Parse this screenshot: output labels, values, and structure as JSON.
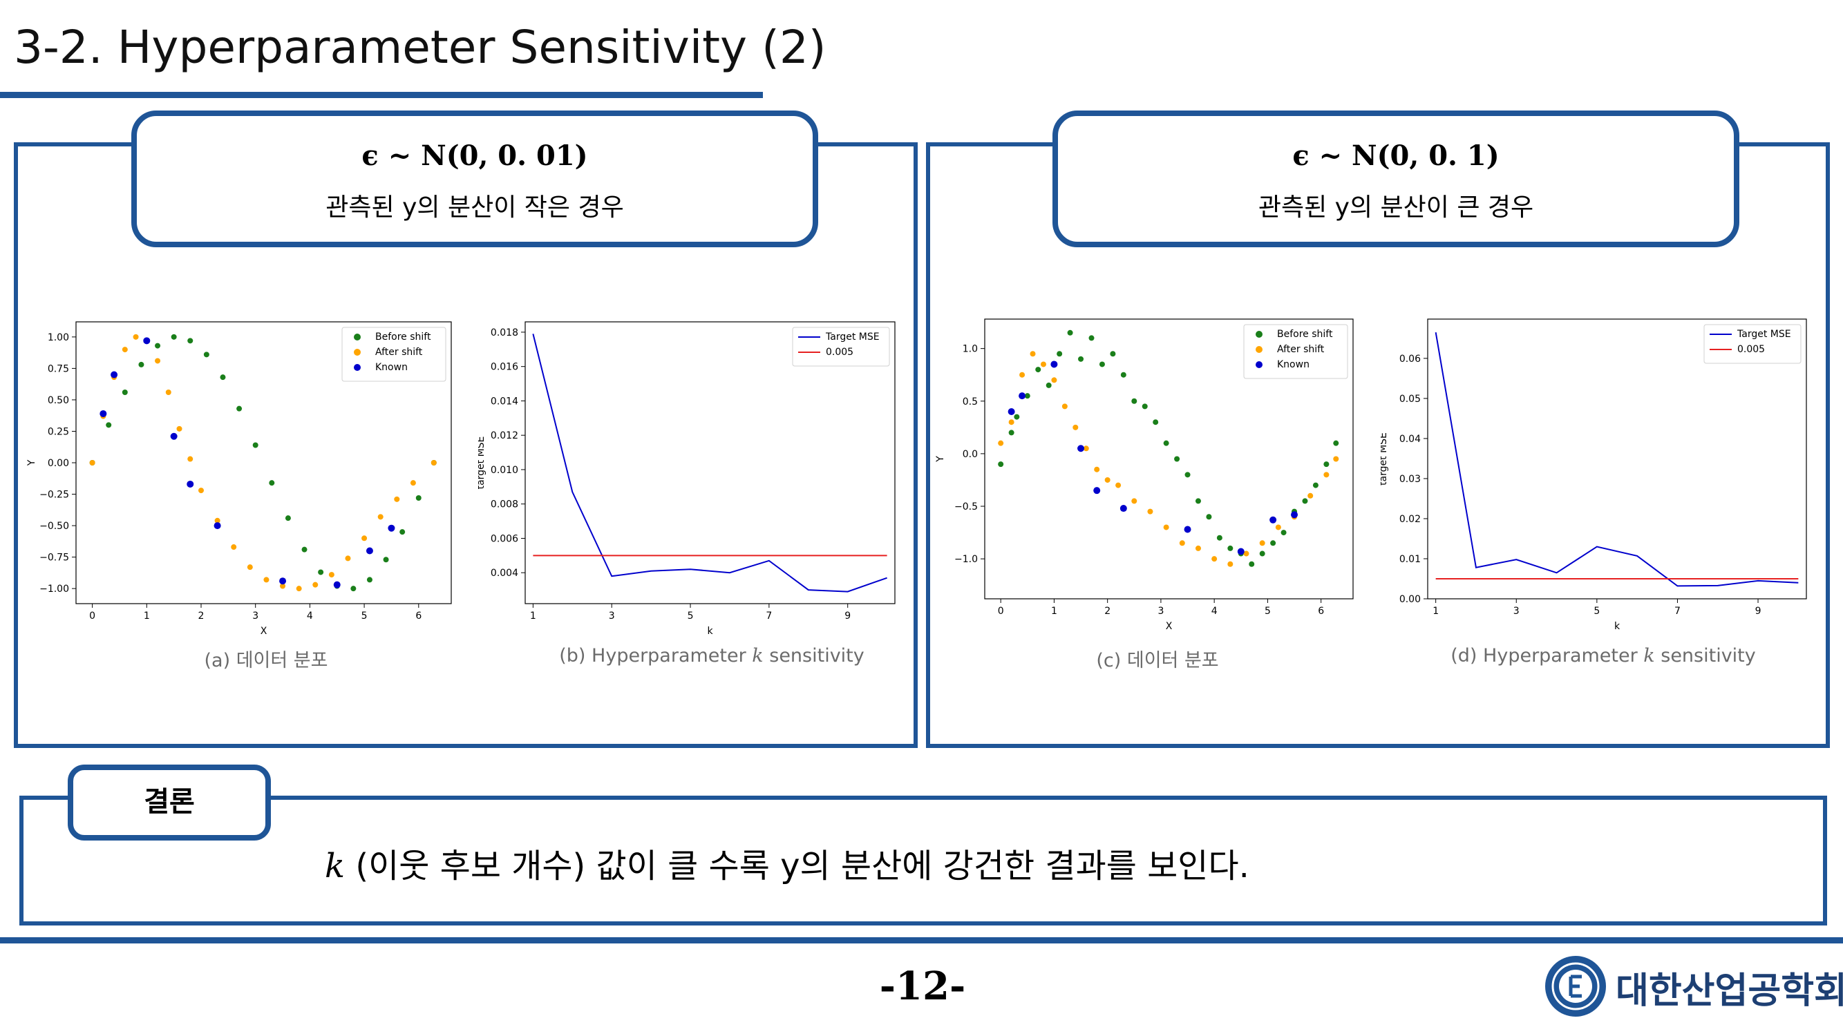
{
  "slide": {
    "title": "3-2. Hyperparameter Sensitivity (2)",
    "page_number": "-12-",
    "organization": "대한산업공학회"
  },
  "left_condition": {
    "formula": "ϵ ~ N(0, 0. 01)",
    "description": "관측된 y의 분산이 작은 경우"
  },
  "right_condition": {
    "formula": "ϵ ~ N(0, 0. 1)",
    "description": "관측된 y의 분산이 큰 경우"
  },
  "captions": {
    "a": "(a) 데이터 분포",
    "b_prefix": "(b) Hyperparameter ",
    "b_k": "k",
    "b_suffix": " sensitivity",
    "c": "(c) 데이터 분포",
    "d_prefix": "(d) Hyperparameter ",
    "d_k": "k",
    "d_suffix": " sensitivity"
  },
  "conclusion": {
    "label": "결론",
    "k": "k",
    "text": " (이웃 후보 개수) 값이 클 수록 y의 분산에 강건한 결과를 보인다."
  },
  "colors": {
    "brand": "#1f5597",
    "before": "#1a7f1a",
    "after": "#ffa500",
    "known": "#0000cc",
    "mse": "#0000cc",
    "threshold": "#e62020"
  },
  "chart_data": [
    {
      "id": "a",
      "type": "scatter",
      "xlabel": "X",
      "ylabel": "Y",
      "xlim": [
        -0.3,
        6.6
      ],
      "ylim": [
        -1.12,
        1.12
      ],
      "xticks": [
        0,
        1,
        2,
        3,
        4,
        5,
        6
      ],
      "yticks": [
        1.0,
        0.75,
        0.5,
        0.25,
        0.0,
        -0.25,
        -0.5,
        -0.75,
        -1.0
      ],
      "ytick_labels": [
        "1.00",
        "0.75",
        "0.50",
        "0.25",
        "0.00",
        "−0.25",
        "−0.50",
        "−0.75",
        "−1.00"
      ],
      "legend_position": "top-right",
      "series": [
        {
          "name": "Before shift",
          "color": "#1a7f1a",
          "points": [
            [
              0.0,
              0.0
            ],
            [
              0.3,
              0.3
            ],
            [
              0.6,
              0.56
            ],
            [
              0.9,
              0.78
            ],
            [
              1.2,
              0.93
            ],
            [
              1.5,
              1.0
            ],
            [
              1.8,
              0.97
            ],
            [
              2.1,
              0.86
            ],
            [
              2.4,
              0.68
            ],
            [
              2.7,
              0.43
            ],
            [
              3.0,
              0.14
            ],
            [
              3.3,
              -0.16
            ],
            [
              3.6,
              -0.44
            ],
            [
              3.9,
              -0.69
            ],
            [
              4.2,
              -0.87
            ],
            [
              4.5,
              -0.98
            ],
            [
              4.8,
              -1.0
            ],
            [
              5.1,
              -0.93
            ],
            [
              5.4,
              -0.77
            ],
            [
              5.7,
              -0.55
            ],
            [
              6.0,
              -0.28
            ],
            [
              6.28,
              0.0
            ]
          ]
        },
        {
          "name": "After shift",
          "color": "#ffa500",
          "points": [
            [
              0.0,
              0.0
            ],
            [
              0.2,
              0.37
            ],
            [
              0.4,
              0.68
            ],
            [
              0.6,
              0.9
            ],
            [
              0.8,
              1.0
            ],
            [
              1.0,
              0.97
            ],
            [
              1.2,
              0.81
            ],
            [
              1.4,
              0.56
            ],
            [
              1.6,
              0.27
            ],
            [
              1.8,
              0.03
            ],
            [
              2.0,
              -0.22
            ],
            [
              2.3,
              -0.46
            ],
            [
              2.6,
              -0.67
            ],
            [
              2.9,
              -0.83
            ],
            [
              3.2,
              -0.93
            ],
            [
              3.5,
              -0.98
            ],
            [
              3.8,
              -1.0
            ],
            [
              4.1,
              -0.97
            ],
            [
              4.4,
              -0.89
            ],
            [
              4.7,
              -0.76
            ],
            [
              5.0,
              -0.6
            ],
            [
              5.3,
              -0.43
            ],
            [
              5.6,
              -0.29
            ],
            [
              5.9,
              -0.16
            ],
            [
              6.28,
              0.0
            ]
          ]
        },
        {
          "name": "Known",
          "color": "#0000cc",
          "points": [
            [
              0.2,
              0.39
            ],
            [
              0.4,
              0.7
            ],
            [
              1.0,
              0.97
            ],
            [
              1.5,
              0.21
            ],
            [
              1.8,
              -0.17
            ],
            [
              2.3,
              -0.5
            ],
            [
              3.5,
              -0.94
            ],
            [
              4.5,
              -0.97
            ],
            [
              5.1,
              -0.7
            ],
            [
              5.5,
              -0.52
            ]
          ]
        }
      ]
    },
    {
      "id": "b",
      "type": "line",
      "xlabel": "k",
      "ylabel": "target MSE",
      "xlim": [
        0.8,
        10.2
      ],
      "ylim": [
        0.0022,
        0.0186
      ],
      "xticks": [
        1,
        3,
        5,
        7,
        9
      ],
      "yticks": [
        0.004,
        0.006,
        0.008,
        0.01,
        0.012,
        0.014,
        0.016,
        0.018
      ],
      "ytick_labels": [
        "0.004",
        "0.006",
        "0.008",
        "0.010",
        "0.012",
        "0.014",
        "0.016",
        "0.018"
      ],
      "legend_position": "top-right",
      "series": [
        {
          "name": "Target MSE",
          "color": "#0000cc",
          "x": [
            1,
            2,
            3,
            4,
            5,
            6,
            7,
            8,
            9,
            10
          ],
          "y": [
            0.0179,
            0.0087,
            0.0038,
            0.0041,
            0.0042,
            0.004,
            0.0047,
            0.003,
            0.0029,
            0.0037
          ]
        },
        {
          "name": "0.005",
          "color": "#e62020",
          "x": [
            1,
            10
          ],
          "y": [
            0.005,
            0.005
          ]
        }
      ]
    },
    {
      "id": "c",
      "type": "scatter",
      "xlabel": "X",
      "ylabel": "Y",
      "xlim": [
        -0.3,
        6.6
      ],
      "ylim": [
        -1.38,
        1.28
      ],
      "xticks": [
        0,
        1,
        2,
        3,
        4,
        5,
        6
      ],
      "yticks": [
        1.0,
        0.5,
        0.0,
        -0.5,
        -1.0
      ],
      "ytick_labels": [
        "1.0",
        "0.5",
        "0.0",
        "−0.5",
        "−1.0"
      ],
      "legend_position": "top-right",
      "series": [
        {
          "name": "Before shift",
          "color": "#1a7f1a",
          "points": [
            [
              0.0,
              -0.1
            ],
            [
              0.2,
              0.2
            ],
            [
              0.3,
              0.35
            ],
            [
              0.5,
              0.55
            ],
            [
              0.7,
              0.8
            ],
            [
              0.9,
              0.65
            ],
            [
              1.1,
              0.95
            ],
            [
              1.3,
              1.15
            ],
            [
              1.5,
              0.9
            ],
            [
              1.7,
              1.1
            ],
            [
              1.9,
              0.85
            ],
            [
              2.1,
              0.95
            ],
            [
              2.3,
              0.75
            ],
            [
              2.5,
              0.5
            ],
            [
              2.7,
              0.45
            ],
            [
              2.9,
              0.3
            ],
            [
              3.1,
              0.1
            ],
            [
              3.3,
              -0.05
            ],
            [
              3.5,
              -0.2
            ],
            [
              3.7,
              -0.45
            ],
            [
              3.9,
              -0.6
            ],
            [
              4.1,
              -0.8
            ],
            [
              4.3,
              -0.9
            ],
            [
              4.5,
              -0.95
            ],
            [
              4.7,
              -1.05
            ],
            [
              4.9,
              -0.95
            ],
            [
              5.1,
              -0.85
            ],
            [
              5.3,
              -0.75
            ],
            [
              5.5,
              -0.55
            ],
            [
              5.7,
              -0.45
            ],
            [
              5.9,
              -0.3
            ],
            [
              6.1,
              -0.1
            ],
            [
              6.28,
              0.1
            ]
          ]
        },
        {
          "name": "After shift",
          "color": "#ffa500",
          "points": [
            [
              0.0,
              0.1
            ],
            [
              0.2,
              0.3
            ],
            [
              0.4,
              0.75
            ],
            [
              0.6,
              0.95
            ],
            [
              0.8,
              0.85
            ],
            [
              1.0,
              0.7
            ],
            [
              1.2,
              0.45
            ],
            [
              1.4,
              0.25
            ],
            [
              1.6,
              0.05
            ],
            [
              1.8,
              -0.15
            ],
            [
              2.0,
              -0.25
            ],
            [
              2.2,
              -0.3
            ],
            [
              2.5,
              -0.45
            ],
            [
              2.8,
              -0.55
            ],
            [
              3.1,
              -0.7
            ],
            [
              3.4,
              -0.85
            ],
            [
              3.7,
              -0.9
            ],
            [
              4.0,
              -1.0
            ],
            [
              4.3,
              -1.05
            ],
            [
              4.6,
              -0.95
            ],
            [
              4.9,
              -0.85
            ],
            [
              5.2,
              -0.7
            ],
            [
              5.5,
              -0.6
            ],
            [
              5.8,
              -0.4
            ],
            [
              6.1,
              -0.2
            ],
            [
              6.28,
              -0.05
            ]
          ]
        },
        {
          "name": "Known",
          "color": "#0000cc",
          "points": [
            [
              0.2,
              0.4
            ],
            [
              0.4,
              0.55
            ],
            [
              1.0,
              0.85
            ],
            [
              1.5,
              0.05
            ],
            [
              1.8,
              -0.35
            ],
            [
              2.3,
              -0.52
            ],
            [
              3.5,
              -0.72
            ],
            [
              4.5,
              -0.93
            ],
            [
              5.1,
              -0.63
            ],
            [
              5.5,
              -0.58
            ]
          ]
        }
      ]
    },
    {
      "id": "d",
      "type": "line",
      "xlabel": "k",
      "ylabel": "target MSE",
      "xlim": [
        0.8,
        10.2
      ],
      "ylim": [
        0.0,
        0.0698
      ],
      "xticks": [
        1,
        3,
        5,
        7,
        9
      ],
      "yticks": [
        0.0,
        0.01,
        0.02,
        0.03,
        0.04,
        0.05,
        0.06
      ],
      "ytick_labels": [
        "0.00",
        "0.01",
        "0.02",
        "0.03",
        "0.04",
        "0.05",
        "0.06"
      ],
      "legend_position": "top-right",
      "series": [
        {
          "name": "Target MSE",
          "color": "#0000cc",
          "x": [
            1,
            2,
            3,
            4,
            5,
            6,
            7,
            8,
            9,
            10
          ],
          "y": [
            0.0665,
            0.0078,
            0.0098,
            0.0065,
            0.013,
            0.0107,
            0.0032,
            0.0033,
            0.0045,
            0.004
          ]
        },
        {
          "name": "0.005",
          "color": "#e62020",
          "x": [
            1,
            10
          ],
          "y": [
            0.005,
            0.005
          ]
        }
      ]
    }
  ]
}
